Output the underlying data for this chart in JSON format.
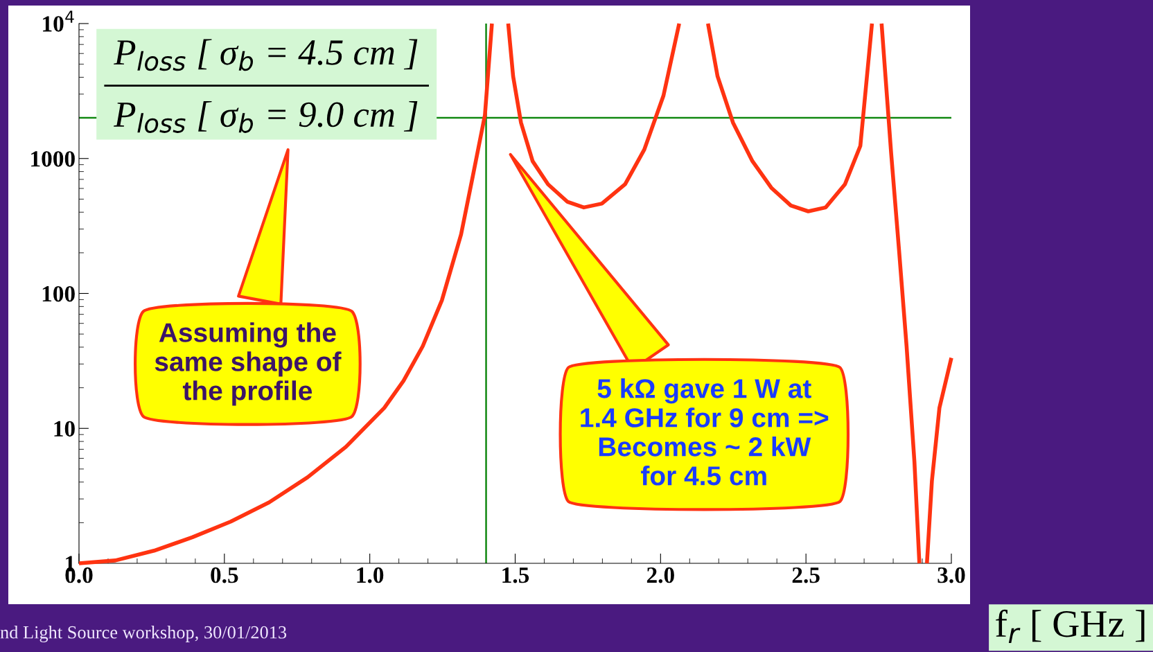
{
  "chart_data": {
    "type": "line",
    "title": "P$_{loss}$ [ σ$_{b}$ = 4.5 cm ]\nP$_{loss}$ [ σ$_{b}$ = 9.0 cm ]",
    "xlabel": "f$_{r}$ [ GHz ]",
    "x": [
      0,
      0.125,
      0.258,
      0.39,
      0.522,
      0.654,
      0.786,
      0.918,
      1.05,
      1.116,
      1.182,
      1.248,
      1.314,
      1.354,
      1.396,
      1.42,
      1.45,
      1.476,
      1.493,
      1.52,
      1.56,
      1.613,
      1.679,
      1.736,
      1.798,
      1.878,
      1.944,
      2.01,
      2.064,
      2.11,
      2.163,
      2.196,
      2.249,
      2.316,
      2.382,
      2.448,
      2.508,
      2.568,
      2.634,
      2.687,
      2.727,
      2.745,
      2.76,
      2.793,
      2.82,
      2.846,
      2.873,
      2.89,
      2.903,
      2.916,
      2.933,
      2.959,
      3.0
    ],
    "series": [
      {
        "color": "#ff3311",
        "values": [
          1,
          1.05,
          1.24,
          1.56,
          2.04,
          2.83,
          4.34,
          7.3,
          14.2,
          22.5,
          40.6,
          89,
          274,
          734,
          2100,
          10000,
          null,
          10000,
          4060,
          1845,
          955,
          644,
          479,
          434,
          463,
          644,
          1164,
          2924,
          10000,
          null,
          10000,
          4060,
          1845,
          955,
          603,
          448,
          406,
          434,
          644,
          1242,
          10000,
          null,
          10000,
          1089,
          210,
          40.6,
          5.64,
          1,
          null,
          1,
          4.06,
          14.2,
          33.3
        ]
      }
    ],
    "log": "y",
    "xlim": [
      0,
      3
    ],
    "xticks": [
      {
        "value": 0,
        "label": "0.0"
      },
      0.5,
      {
        "value": 1,
        "label": "1.0"
      },
      1.5,
      {
        "value": 2,
        "label": "2.0"
      },
      2.5,
      {
        "value": 3,
        "label": "3.0"
      }
    ],
    "ylim": [
      1,
      10000
    ],
    "yticks": [
      1,
      10,
      100,
      1000,
      {
        "value": 10000,
        "label": "10$^{4}$"
      }
    ],
    "ref_lines": [
      {
        "axis": "x",
        "value": 1.4,
        "color": "#118811"
      },
      {
        "axis": "y",
        "value": 2000,
        "color": "#118811"
      }
    ],
    "annotations": [
      "Assuming the\nsame shape of\nthe profile",
      "5 kΩ gave 1 W at\n1.4 GHz for 9 cm =>\nBecomes ~ 2 kW\nfor 4.5 cm",
      "nd Light Source workshop, 30/01/2013"
    ]
  }
}
